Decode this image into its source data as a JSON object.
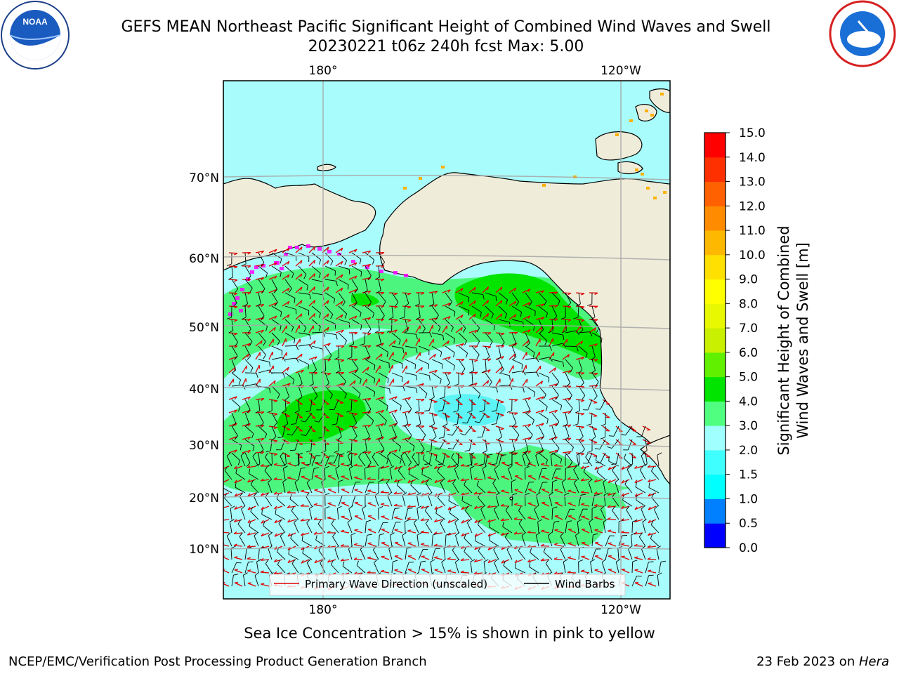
{
  "header": {
    "title_line1": "GEFS MEAN Northeast Pacific Significant Height of Combined Wind Waves and Swell",
    "title_line2": "20230221 t06z 240h fcst   Max: 5.00"
  },
  "logos": {
    "left": "NOAA",
    "right": "NATIONAL WEATHER SERVICE"
  },
  "chart_data": {
    "type": "heatmap",
    "title": "GEFS MEAN Northeast Pacific Significant Height of Combined Wind Waves and Swell",
    "subtitle": "20230221 t06z 240h fcst   Max: 5.00",
    "max_value": 5.0,
    "x_ticks": [
      "180°",
      "120°W"
    ],
    "y_ticks": [
      "10°N",
      "20°N",
      "30°N",
      "40°N",
      "50°N",
      "60°N",
      "70°N"
    ],
    "grid": true,
    "colorbar": {
      "label": "Significant Height of Combined Wind Waves and Swell [m]",
      "label_line1": "Significant Height of Combined",
      "label_line2": "Wind Waves and Swell [m]",
      "ticks": [
        "0.0",
        "0.5",
        "1.0",
        "1.5",
        "2.0",
        "3.0",
        "4.0",
        "5.0",
        "6.0",
        "7.0",
        "8.0",
        "9.0",
        "10.0",
        "11.0",
        "12.0",
        "13.0",
        "14.0",
        "15.0"
      ],
      "colors": [
        "#0000ff",
        "#0080ff",
        "#00ffff",
        "#40ffff",
        "#a0ffff",
        "#50ff80",
        "#00e400",
        "#60f000",
        "#c8f000",
        "#e8f800",
        "#ffff00",
        "#ffe000",
        "#ffb800",
        "#ff8c00",
        "#ff6000",
        "#ff3000",
        "#ff0000"
      ]
    },
    "legend": {
      "placement": "bottom-center",
      "entries": [
        {
          "label": "Primary Wave Direction (unscaled)",
          "color": "#e00000"
        },
        {
          "label": "Wind Barbs",
          "color": "#000000"
        }
      ]
    },
    "regions": [
      {
        "name": "",
        "height_m": 3.5,
        "color": "#4cf57e"
      },
      {
        "name": "",
        "height_m": 4.5,
        "color": "#00e400"
      },
      {
        "name": "",
        "height_m": 2.5,
        "color": "#a8fcfc"
      },
      {
        "name": "",
        "height_m": 1.7,
        "color": "#5cf4f4"
      }
    ],
    "land_color": "#efedda",
    "ice_color": "#ff00ff"
  },
  "note": "Sea Ice Concentration > 15% is shown in pink to yellow",
  "footer": {
    "left": "NCEP/EMC/Verification Post Processing Product Generation Branch",
    "right_date": "23 Feb 2023 on ",
    "right_host": "Hera"
  }
}
